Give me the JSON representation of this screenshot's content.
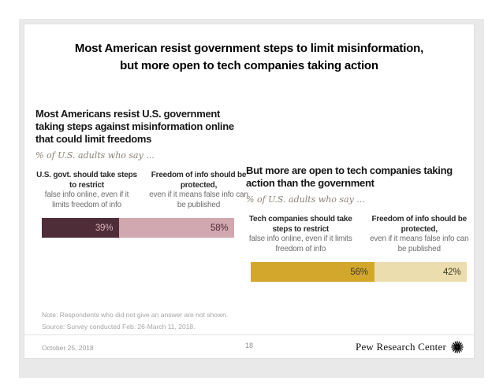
{
  "slide": {
    "title_line1": "Most American resist government steps to limit misinformation,",
    "title_line2": "but more open to tech companies taking action",
    "note": "Note: Respondents who did not give an answer are not shown.",
    "source": "Source: Survey conducted Feb. 26-March 11, 2018.",
    "footer": {
      "date": "October 25, 2018",
      "page_number": "18",
      "brand": "Pew Research Center"
    }
  },
  "chart_data": [
    {
      "type": "bar",
      "title": "Most Americans resist U.S. government taking steps against misinformation online that could limit freedoms",
      "subtitle": "% of U.S. adults who say ...",
      "categories": [
        {
          "bold": "U.S. govt. should take steps to restrict",
          "rest": "false info online, even if it limits freedom of info"
        },
        {
          "bold": "Freedom of info should be protected,",
          "rest": "even if it means false info can be published"
        }
      ],
      "values": [
        39,
        58
      ],
      "labels": [
        "39%",
        "58%"
      ],
      "colors": [
        "#4e2c38",
        "#d1a7b0"
      ],
      "label_colors": [
        "#ddb5bf",
        "#4e2c38"
      ],
      "xlim": [
        0,
        100
      ],
      "legend_position": "none",
      "grid": false
    },
    {
      "type": "bar",
      "title": "But more are open to tech companies taking action than the government",
      "subtitle": "% of U.S. adults who say ...",
      "categories": [
        {
          "bold": "Tech companies should take steps to restrict",
          "rest": "false info online, even if it limits freedom of info"
        },
        {
          "bold": "Freedom of info should be protected,",
          "rest": "even if it means false info can be published"
        }
      ],
      "values": [
        56,
        42
      ],
      "labels": [
        "56%",
        "42%"
      ],
      "colors": [
        "#d3a72b",
        "#ecddae"
      ],
      "label_colors": [
        "#3e3a28",
        "#3e3a28"
      ],
      "xlim": [
        0,
        100
      ],
      "legend_position": "none",
      "grid": false
    }
  ]
}
